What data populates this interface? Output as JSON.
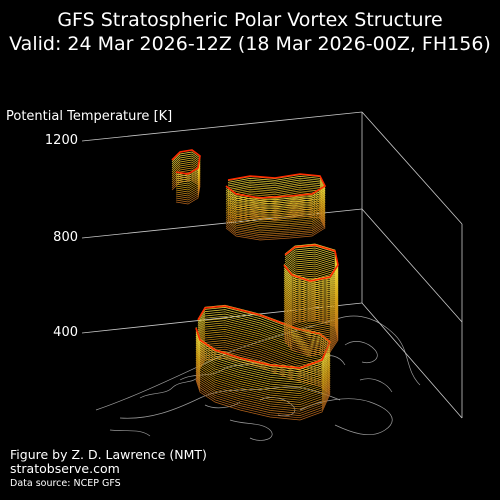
{
  "header": {
    "title_line1": "GFS Stratospheric Polar Vortex Structure",
    "title_line2": "Valid: 24 Mar 2026-12Z  (18 Mar 2026-00Z, FH156)"
  },
  "chart_data": {
    "type": "3d-isosurface",
    "zlabel": "Potential Temperature [K]",
    "ticks": [
      {
        "value": 1200,
        "label": "1200"
      },
      {
        "value": 800,
        "label": "800"
      },
      {
        "value": 400,
        "label": "400"
      }
    ],
    "zlim": [
      400,
      1200
    ],
    "base_map": "coastlines",
    "colors": {
      "background": "#000000",
      "contour_low": "#b5651d",
      "contour_mid": "#d4a017",
      "contour_high": "#f0e040",
      "edge": "#ff2a00",
      "axes": "#c8c8c8",
      "coastline": "#9a9a9a"
    }
  },
  "credits": {
    "line1": "Figure by Z. D. Lawrence (NMT)",
    "line2": "stratobserve.com",
    "line3": "Data source: NCEP GFS"
  }
}
